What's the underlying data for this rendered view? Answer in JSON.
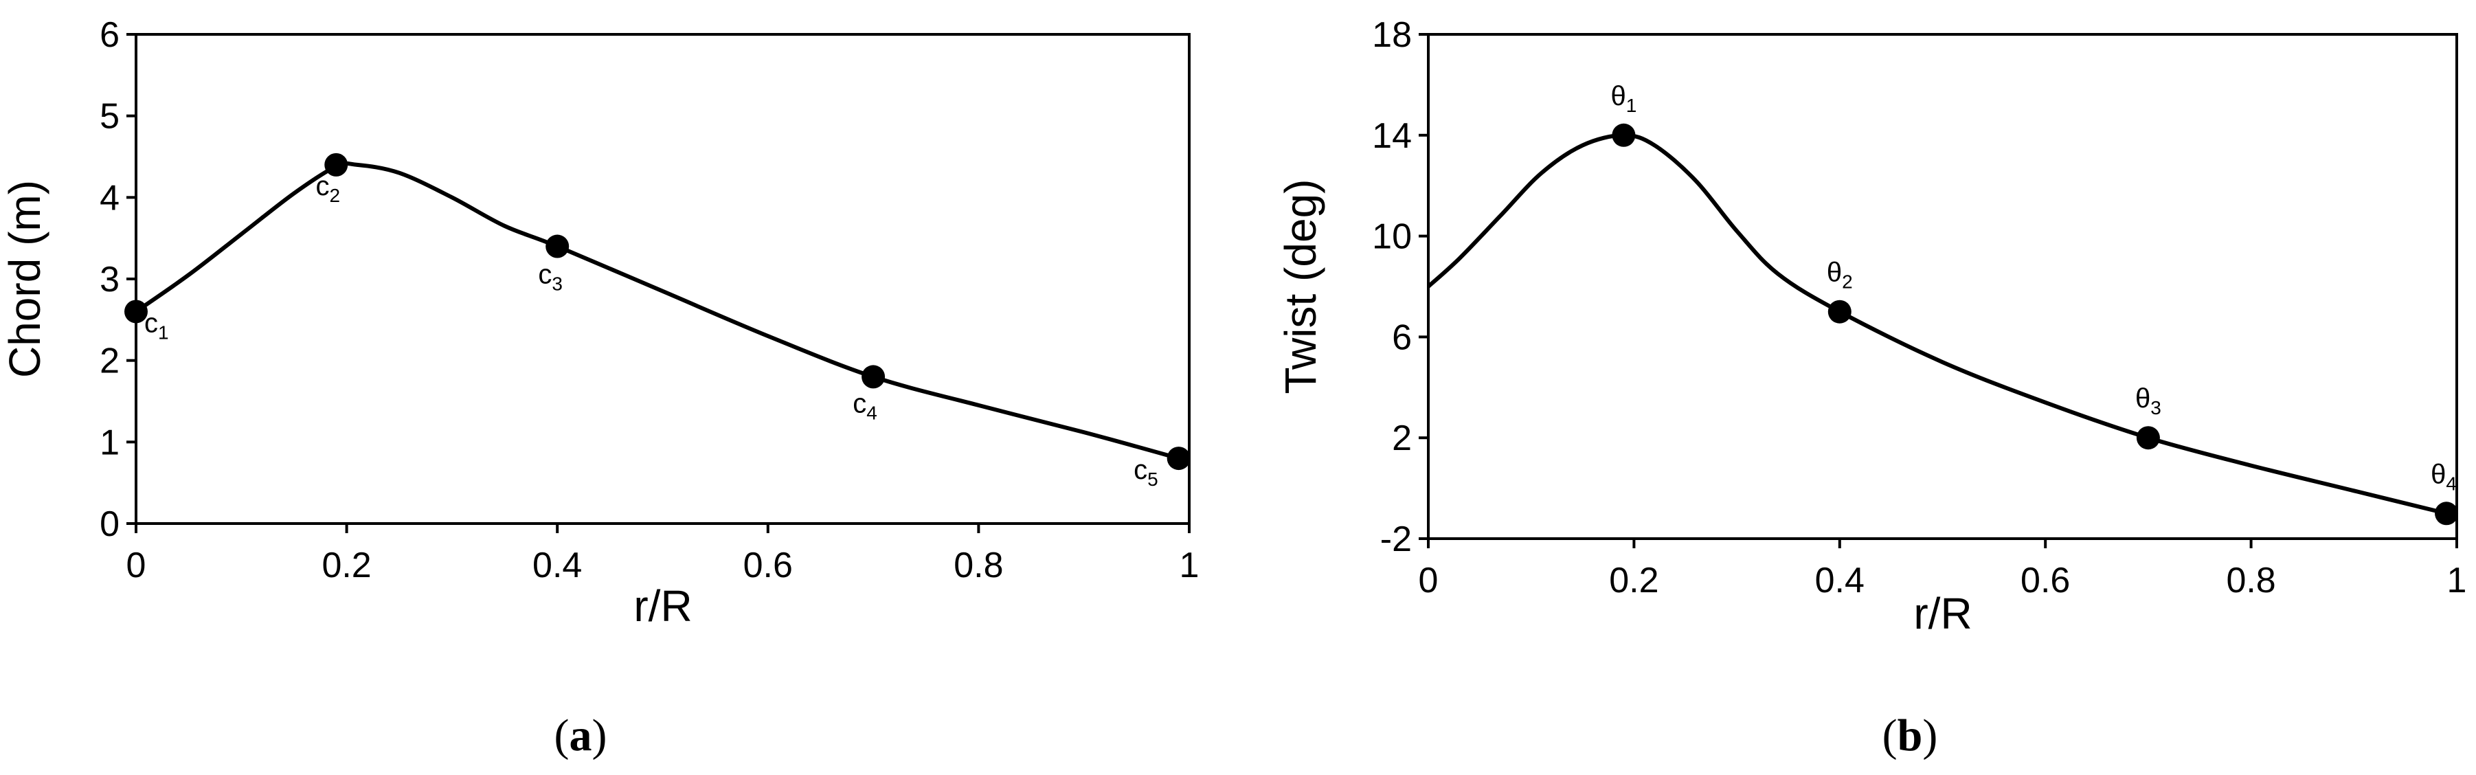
{
  "chart_data": [
    {
      "type": "line",
      "panel_label": "a",
      "xlabel": "r/R",
      "ylabel": "Chord (m)",
      "xlim": [
        0,
        1
      ],
      "ylim": [
        0,
        6
      ],
      "xticks": [
        "0",
        "0.2",
        "0.4",
        "0.6",
        "0.8",
        "1"
      ],
      "yticks": [
        "0",
        "1",
        "2",
        "3",
        "4",
        "5",
        "6"
      ],
      "grid": false,
      "legend": "none",
      "curve": {
        "x": [
          0,
          0.05,
          0.1,
          0.15,
          0.19,
          0.21,
          0.25,
          0.3,
          0.35,
          0.4,
          0.5,
          0.6,
          0.7,
          0.8,
          0.9,
          0.99
        ],
        "y": [
          2.6,
          3.05,
          3.55,
          4.05,
          4.38,
          4.4,
          4.3,
          4.0,
          3.65,
          3.4,
          2.85,
          2.3,
          1.8,
          1.45,
          1.12,
          0.8
        ]
      },
      "control_points": [
        {
          "base": "c",
          "sub": "1",
          "x": 0.0,
          "y": 2.6
        },
        {
          "base": "c",
          "sub": "2",
          "x": 0.19,
          "y": 4.4
        },
        {
          "base": "c",
          "sub": "3",
          "x": 0.4,
          "y": 3.4
        },
        {
          "base": "c",
          "sub": "4",
          "x": 0.7,
          "y": 1.8
        },
        {
          "base": "c",
          "sub": "5",
          "x": 0.99,
          "y": 0.8
        }
      ]
    },
    {
      "type": "line",
      "panel_label": "b",
      "xlabel": "r/R",
      "ylabel": "Twist (deg)",
      "xlim": [
        0,
        1
      ],
      "ylim": [
        -2,
        18
      ],
      "xticks": [
        "0",
        "0.2",
        "0.4",
        "0.6",
        "0.8",
        "1"
      ],
      "yticks": [
        "-2",
        "2",
        "6",
        "10",
        "14",
        "18"
      ],
      "grid": false,
      "legend": "none",
      "curve": {
        "x": [
          0,
          0.03,
          0.07,
          0.11,
          0.15,
          0.19,
          0.22,
          0.26,
          0.3,
          0.34,
          0.4,
          0.5,
          0.6,
          0.7,
          0.8,
          0.9,
          0.99
        ],
        "y": [
          8,
          9.1,
          10.8,
          12.5,
          13.6,
          14,
          13.6,
          12.2,
          10.2,
          8.5,
          7,
          5,
          3.4,
          2,
          0.9,
          -0.1,
          -1
        ]
      },
      "control_points": [
        {
          "base": "θ",
          "sub": "1",
          "x": 0.19,
          "y": 14
        },
        {
          "base": "θ",
          "sub": "2",
          "x": 0.4,
          "y": 7
        },
        {
          "base": "θ",
          "sub": "3",
          "x": 0.7,
          "y": 2
        },
        {
          "base": "θ",
          "sub": "4",
          "x": 0.99,
          "y": -1
        }
      ]
    }
  ],
  "captions": {
    "a": "a",
    "b": "b"
  }
}
